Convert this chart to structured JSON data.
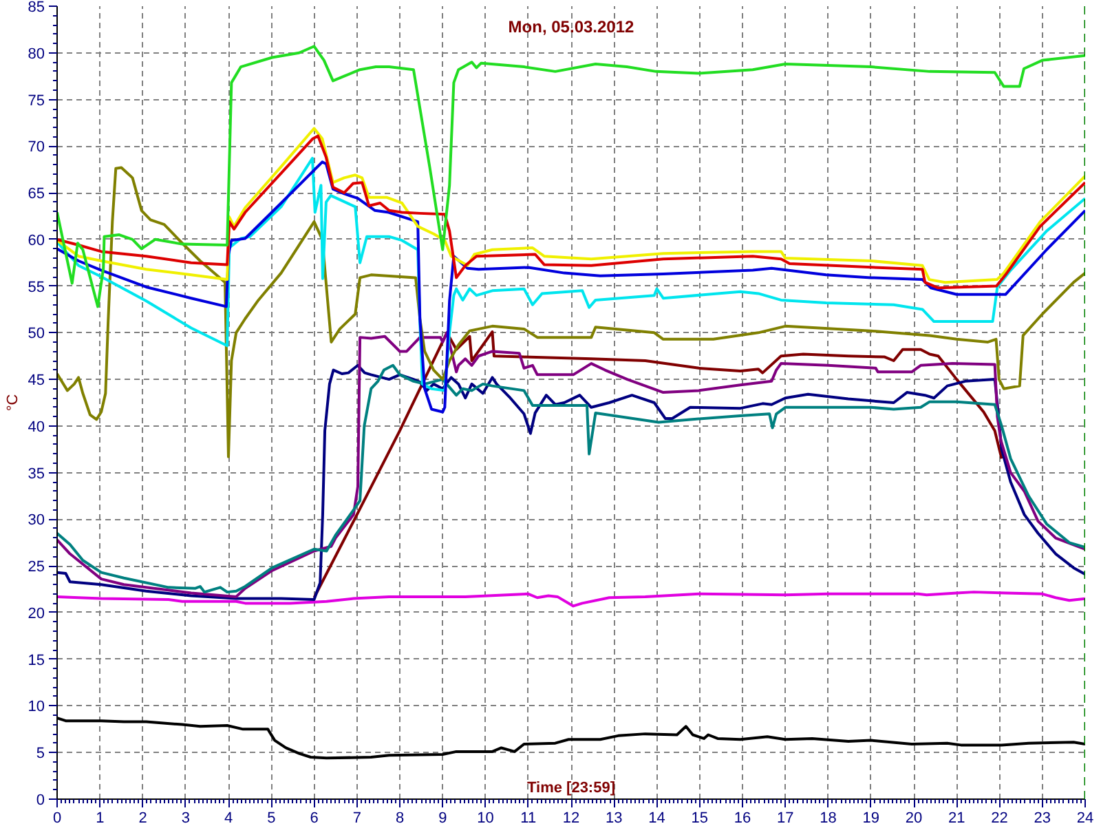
{
  "chart_data": {
    "type": "line",
    "title": "Mon, 05.03.2012",
    "xlabel": "Time [23:59]",
    "ylabel": "°C",
    "xlim": [
      0,
      24
    ],
    "ylim": [
      0,
      85
    ],
    "xticks": [
      0,
      1,
      2,
      3,
      4,
      5,
      6,
      7,
      8,
      9,
      10,
      11,
      12,
      13,
      14,
      15,
      16,
      17,
      18,
      19,
      20,
      21,
      22,
      23,
      24
    ],
    "yticks": [
      0,
      5,
      10,
      15,
      20,
      25,
      30,
      35,
      40,
      45,
      50,
      55,
      60,
      65,
      70,
      75,
      80,
      85
    ],
    "grid": true,
    "ref_lines": [
      {
        "axis": "x",
        "value": 24,
        "color": "#008000",
        "line_style": "dashed"
      }
    ],
    "series": [
      {
        "color": "#000000",
        "x": [
          0,
          0.2,
          1.03,
          1.56,
          2.08,
          2.92,
          3.34,
          3.97,
          4.34,
          4.92,
          5.08,
          5.34,
          5.65,
          5.92,
          6.29,
          7.33,
          7.75,
          9,
          9.32,
          10.16,
          10.37,
          10.68,
          10.9,
          11.63,
          11.94,
          12.68,
          13.1,
          13.73,
          14.47,
          14.68,
          14.84,
          15.1,
          15.2,
          15.42,
          15.95,
          16.58,
          17,
          17.63,
          18.47,
          19,
          19.95,
          20.78,
          21.1,
          22.05,
          22.68,
          23.73,
          24
        ],
        "values": [
          8.7,
          8.4,
          8.4,
          8.3,
          8.3,
          8,
          7.8,
          7.9,
          7.5,
          7.5,
          6.3,
          5.5,
          4.9,
          4.5,
          4.4,
          4.5,
          4.7,
          4.8,
          5.1,
          5.1,
          5.5,
          5.1,
          5.9,
          6,
          6.4,
          6.4,
          6.8,
          7,
          6.9,
          7.8,
          6.9,
          6.5,
          6.9,
          6.5,
          6.4,
          6.7,
          6.4,
          6.5,
          6.2,
          6.3,
          5.9,
          6,
          5.8,
          5.8,
          6,
          6.1,
          5.9
        ]
      },
      {
        "color": "#e000e0",
        "x": [
          0,
          0.5,
          1.03,
          2.6,
          2.92,
          4.18,
          4.39,
          5.44,
          6.29,
          6.92,
          7.75,
          9.53,
          11,
          11.21,
          11.47,
          11.68,
          12.05,
          12.26,
          12.89,
          13.73,
          14.98,
          17,
          18,
          20.1,
          20.3,
          21,
          21.4,
          22.14,
          23,
          23.31,
          23.63,
          24
        ],
        "values": [
          21.7,
          21.6,
          21.5,
          21.4,
          21.2,
          21.2,
          21,
          21,
          21.2,
          21.5,
          21.7,
          21.7,
          22,
          21.6,
          21.8,
          21.7,
          20.7,
          21,
          21.6,
          21.7,
          22,
          21.9,
          22,
          22,
          21.9,
          22.1,
          22.2,
          22.1,
          22,
          21.6,
          21.3,
          21.5
        ]
      },
      {
        "color": "#800000",
        "x": [
          6,
          7,
          8,
          9.1,
          9.32,
          9.63,
          9.68,
          10.16,
          10.2,
          10.9,
          12.47,
          13.73,
          14.98,
          15.95,
          16.37,
          16.47,
          16.9,
          17.42,
          18.47,
          19.32,
          19.53,
          19.74,
          20.16,
          20.37,
          20.57,
          21,
          21.63,
          21.89,
          22.05
        ],
        "values": [
          21.6,
          30.5,
          39.5,
          50,
          48.2,
          49.6,
          47,
          50.1,
          47.5,
          47.4,
          47.2,
          47,
          46.2,
          45.9,
          46.1,
          45.7,
          47.5,
          47.7,
          47.5,
          47.4,
          47,
          48.2,
          48.2,
          47.7,
          47.5,
          45,
          41.5,
          39.5,
          36.5
        ]
      },
      {
        "color": "#000080",
        "x": [
          0,
          0.2,
          0.3,
          1.03,
          2.08,
          3.13,
          4.18,
          5.23,
          6,
          6.14,
          6.2,
          6.25,
          6.36,
          6.45,
          6.65,
          6.8,
          7.02,
          7.18,
          7.33,
          7.75,
          8,
          8.32,
          8.47,
          8.63,
          8.79,
          9,
          9.2,
          9.37,
          9.53,
          9.68,
          9.94,
          10.16,
          10.26,
          10.58,
          10.9,
          11.05,
          11.16,
          11.42,
          11.63,
          11.84,
          12.2,
          12.47,
          12.89,
          13.42,
          13.94,
          14.2,
          14.36,
          14.78,
          15.95,
          16.47,
          16.68,
          17,
          17.53,
          18.47,
          19.53,
          19.84,
          20.26,
          20.47,
          20.78,
          21.2,
          21.89,
          21.95,
          22.05,
          22.26,
          22.58,
          22.9,
          23.31,
          23.73,
          24
        ],
        "values": [
          24.3,
          24.2,
          23.3,
          23,
          22.3,
          21.8,
          21.5,
          21.5,
          21.4,
          23.2,
          30.5,
          39.5,
          44.5,
          46,
          45.6,
          45.7,
          46.5,
          45.7,
          45.5,
          45,
          45.5,
          45,
          44.7,
          43.8,
          44.5,
          44,
          45.2,
          44.5,
          43,
          44.5,
          43.5,
          45.2,
          44.5,
          43,
          41.3,
          39.2,
          41.4,
          43.3,
          42.3,
          42.5,
          43.3,
          42,
          42.5,
          43.3,
          42.5,
          40.8,
          40.8,
          42,
          41.9,
          42.4,
          42.3,
          43,
          43.4,
          42.9,
          42.5,
          43.6,
          43.3,
          43,
          44.3,
          44.8,
          45,
          42.4,
          37.5,
          34,
          30.5,
          28.5,
          26.3,
          24.8,
          24.1
        ]
      },
      {
        "color": "#800080",
        "x": [
          0,
          0.3,
          1.03,
          1.56,
          3.13,
          4.18,
          4.39,
          5.02,
          6,
          6.4,
          6.5,
          6.92,
          7.02,
          7.07,
          7.33,
          7.65,
          8,
          8.16,
          8.47,
          8.95,
          9,
          9.1,
          9.32,
          9.37,
          9.53,
          9.68,
          9.84,
          10.16,
          10.79,
          10.9,
          11.1,
          11.21,
          12.05,
          12.47,
          12.79,
          13.31,
          14.15,
          14.98,
          15.95,
          16.68,
          16.79,
          16.9,
          18,
          19.11,
          19.16,
          19.95,
          20.16,
          20.9,
          21.89,
          21.95,
          22.03,
          22.26,
          22.58,
          22.9,
          23.31,
          24
        ],
        "values": [
          27.8,
          26.3,
          23.6,
          23,
          22.1,
          21.7,
          22.6,
          24.5,
          26.6,
          27.1,
          28,
          30.5,
          33.5,
          49.5,
          49.4,
          49.6,
          48,
          48,
          49.5,
          49.5,
          49,
          50,
          45.8,
          46.5,
          47.2,
          46.5,
          47.5,
          48,
          47.8,
          46.2,
          46.5,
          45.5,
          45.5,
          46.7,
          46,
          45,
          43.6,
          43.8,
          44.4,
          44.8,
          46,
          46.7,
          46.5,
          46.2,
          45.8,
          45.8,
          46.5,
          46.7,
          46.6,
          41,
          38.5,
          35,
          33,
          29.8,
          28,
          26.8
        ]
      },
      {
        "color": "#008080",
        "x": [
          0,
          0.3,
          0.6,
          1.03,
          1.56,
          2.6,
          3.23,
          3.34,
          3.44,
          3.81,
          3.97,
          4.18,
          4.39,
          5.02,
          6,
          6.29,
          6.5,
          6.92,
          7.07,
          7.17,
          7.33,
          7.49,
          7.63,
          7.84,
          8,
          8.32,
          8.58,
          9,
          9.32,
          9.47,
          9.68,
          9.94,
          10.16,
          10.9,
          11.1,
          12.37,
          12.42,
          12.57,
          14.04,
          14.78,
          15.95,
          16.63,
          16.7,
          16.79,
          17,
          19,
          19.53,
          20.16,
          20.37,
          21,
          21.89,
          22.05,
          22.26,
          22.68,
          23.1,
          23.63,
          24
        ],
        "values": [
          28.5,
          27.3,
          25.6,
          24.3,
          23.7,
          22.7,
          22.6,
          22.8,
          22.2,
          22.7,
          22.2,
          22.3,
          22.8,
          24.8,
          26.8,
          26.6,
          28.3,
          31,
          32,
          40,
          44,
          44.8,
          46,
          46.5,
          45.5,
          44.8,
          44.5,
          45,
          43.3,
          44,
          43.8,
          44.5,
          44.3,
          43.8,
          42.2,
          42.2,
          37,
          41.4,
          40.4,
          40.7,
          41.1,
          41.3,
          39.8,
          41.3,
          42,
          42,
          41.8,
          42,
          42.6,
          42.6,
          42.3,
          40,
          36.5,
          32.5,
          29.5,
          27.5,
          27
        ]
      },
      {
        "color": "#808000",
        "x": [
          0,
          0.24,
          0.4,
          0.5,
          0.6,
          0.77,
          0.92,
          1.03,
          1.13,
          1.19,
          1.29,
          1.37,
          1.5,
          1.76,
          1.97,
          2.18,
          2.5,
          2.92,
          3.34,
          3.92,
          4,
          4.07,
          4.18,
          4.39,
          4.7,
          5.23,
          6,
          6.19,
          6.4,
          6.6,
          6.96,
          7.07,
          7.33,
          8.37,
          8.47,
          8.58,
          8.79,
          9,
          9.16,
          9.37,
          9.63,
          10.16,
          10.9,
          11.21,
          12.47,
          12.57,
          13.94,
          14.15,
          15.32,
          16.37,
          17,
          19,
          20.37,
          21,
          21.73,
          21.92,
          21.99,
          22.1,
          22.47,
          22.55,
          23,
          23.73,
          24
        ],
        "values": [
          45.6,
          43.8,
          44.5,
          45.2,
          43.5,
          41.2,
          40.7,
          41.5,
          43.5,
          51,
          61.9,
          67.6,
          67.7,
          66.6,
          63.1,
          62.1,
          61.6,
          59.6,
          57.7,
          55.4,
          36.7,
          47,
          50,
          51.5,
          53.5,
          56.4,
          61.9,
          60,
          49,
          50.4,
          52,
          55.9,
          56.2,
          55.9,
          51.5,
          48,
          46,
          45,
          47,
          48.7,
          50.2,
          50.7,
          50.4,
          49.5,
          49.5,
          50.6,
          50,
          49.3,
          49.3,
          50,
          50.7,
          50.2,
          49.7,
          49.3,
          49,
          49.3,
          45,
          44,
          44.3,
          49.7,
          52,
          55.4,
          56.4
        ]
      },
      {
        "color": "#00e5ee",
        "x": [
          0,
          0.5,
          1.03,
          2.08,
          3.13,
          3.97,
          4.02,
          4.29,
          4.5,
          5.23,
          5.96,
          6.02,
          6.16,
          6.2,
          6.28,
          6.39,
          6.96,
          7.07,
          7.23,
          7.75,
          8.05,
          8.42,
          8.47,
          8.53,
          8.74,
          9.05,
          9.16,
          9.26,
          9.32,
          9.47,
          9.63,
          9.79,
          10.16,
          10.9,
          11.1,
          11.32,
          12.26,
          12.42,
          12.57,
          13.94,
          14,
          14.15,
          15.95,
          16.37,
          16.9,
          17.95,
          19.53,
          20.2,
          20.47,
          21.84,
          21.95,
          22.26,
          23.1,
          24
        ],
        "values": [
          59.7,
          57.2,
          56,
          53.4,
          50.5,
          48.6,
          59.1,
          60.1,
          60.3,
          63.5,
          68.7,
          62.9,
          65.8,
          55.8,
          64,
          64.7,
          63.5,
          57.5,
          60.3,
          60.3,
          59.9,
          58.9,
          51,
          44.5,
          44,
          43.8,
          50,
          54,
          54.7,
          53.5,
          54.7,
          54,
          54.5,
          54.7,
          53,
          54.2,
          54.5,
          52.7,
          53.5,
          54,
          54.7,
          53.7,
          54.4,
          54.2,
          53.5,
          53.2,
          53,
          52.5,
          51.2,
          51.2,
          54.9,
          56.7,
          60.9,
          64.4
        ]
      },
      {
        "color": "#0000dd",
        "x": [
          0,
          0.5,
          1.03,
          2.08,
          3.13,
          3.95,
          4,
          4.07,
          4.39,
          5.23,
          6.19,
          6.28,
          6.44,
          6.7,
          7.02,
          7.42,
          7.74,
          8.42,
          8.47,
          8.58,
          8.74,
          9,
          9.05,
          9.16,
          9.26,
          9.58,
          9.84,
          11,
          11.84,
          12.68,
          14.15,
          16.24,
          16.68,
          17.95,
          19,
          20.2,
          20.4,
          21,
          22.14,
          23.1,
          24
        ],
        "values": [
          59,
          57.7,
          56.7,
          54.9,
          53.7,
          52.8,
          58.4,
          59.9,
          60.1,
          63.9,
          68.3,
          68.1,
          65.4,
          64.9,
          64.4,
          63.1,
          62.9,
          61.9,
          51.5,
          44,
          41.8,
          41.5,
          42,
          53.4,
          58.2,
          56.9,
          56.8,
          57,
          56.4,
          56.1,
          56.3,
          56.7,
          56.9,
          56.2,
          55.9,
          55.7,
          54.8,
          54.1,
          54.1,
          58.9,
          63.1
        ]
      },
      {
        "color": "#f0f000",
        "x": [
          0,
          0.5,
          1.03,
          2.08,
          3.13,
          3.97,
          4.02,
          4.13,
          4.39,
          5.23,
          6,
          6.19,
          6.44,
          6.7,
          6.96,
          7.12,
          7.28,
          7.7,
          8.05,
          8.42,
          8.79,
          9.05,
          9.2,
          9.58,
          9.74,
          10.16,
          11.1,
          11.37,
          12.47,
          14.15,
          16.24,
          16.9,
          17,
          19,
          20.2,
          20.36,
          20.73,
          21.94,
          22.1,
          22.95,
          24
        ],
        "values": [
          59.9,
          58.2,
          57.7,
          56.8,
          56.2,
          55.7,
          62.4,
          61.4,
          63.4,
          67.8,
          71.9,
          70.8,
          66.1,
          66.6,
          66.9,
          66.6,
          64.5,
          64.5,
          63.9,
          61.4,
          60.6,
          59.9,
          58.2,
          57.2,
          58.4,
          58.9,
          59.1,
          58.2,
          57.9,
          58.5,
          58.7,
          58.7,
          58,
          57.7,
          57.2,
          55.7,
          55.4,
          55.7,
          56.4,
          61.9,
          66.8
        ]
      },
      {
        "color": "#dd0000",
        "x": [
          0,
          0.5,
          1.03,
          2.08,
          3.13,
          3.97,
          4.02,
          4.13,
          4.39,
          5.23,
          5.97,
          6.09,
          6.28,
          6.44,
          6.7,
          6.91,
          7.12,
          7.28,
          7.54,
          7.75,
          8.05,
          8.47,
          9.05,
          9.16,
          9.32,
          9.53,
          9.79,
          11.16,
          11.37,
          12.47,
          14.15,
          16.24,
          16.9,
          17.1,
          19.58,
          20.2,
          20.26,
          20.57,
          21.93,
          22.14,
          22.95,
          24
        ],
        "values": [
          60,
          59.4,
          58.7,
          58.2,
          57.5,
          57.3,
          61.9,
          61.1,
          62.9,
          67.1,
          70.8,
          71.1,
          68.8,
          65.6,
          65,
          66,
          66.1,
          63.6,
          63.9,
          63.1,
          62.9,
          62.8,
          62.7,
          60.9,
          55.9,
          57.2,
          58.2,
          58.4,
          57.3,
          57.2,
          57.9,
          58.2,
          57.9,
          57.4,
          56.9,
          56.8,
          55.4,
          54.8,
          55,
          56.2,
          61.4,
          66.1
        ]
      },
      {
        "color": "#22dd22",
        "x": [
          0,
          0.35,
          0.48,
          0.6,
          0.95,
          1.08,
          1.1,
          1.45,
          1.76,
          1.97,
          2.29,
          2.92,
          3.97,
          4.07,
          4.29,
          5.02,
          5.65,
          6,
          6.23,
          6.44,
          6.7,
          7.07,
          7.44,
          7.75,
          8.32,
          8.7,
          9,
          9.16,
          9.26,
          9.37,
          9.68,
          9.79,
          9.9,
          10.9,
          11.63,
          12.57,
          13.3,
          13.98,
          14.97,
          16.24,
          17,
          19,
          20.37,
          21.89,
          22.1,
          22.47,
          22.57,
          23,
          24
        ],
        "values": [
          62.9,
          55.3,
          59.6,
          58.9,
          52.8,
          56.9,
          60.3,
          60.5,
          60,
          59,
          60,
          59.5,
          59.4,
          76.8,
          78.5,
          79.5,
          80,
          80.7,
          79.2,
          77,
          77.5,
          78.2,
          78.5,
          78.5,
          78.2,
          67.7,
          58.9,
          65.8,
          76.8,
          78.2,
          79,
          78.4,
          78.9,
          78.5,
          78,
          78.8,
          78.5,
          78,
          77.8,
          78.2,
          78.8,
          78.5,
          78,
          77.9,
          76.4,
          76.4,
          78.3,
          79.2,
          79.7
        ]
      }
    ]
  }
}
